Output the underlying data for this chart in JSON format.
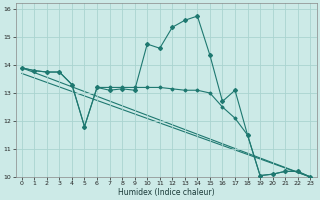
{
  "xlabel": "Humidex (Indice chaleur)",
  "bg_color": "#cceae7",
  "grid_color": "#aad4d0",
  "line_color": "#1e7870",
  "xlim": [
    -0.5,
    23.5
  ],
  "ylim": [
    10,
    16.2
  ],
  "xticks": [
    0,
    1,
    2,
    3,
    4,
    5,
    6,
    7,
    8,
    9,
    10,
    11,
    12,
    13,
    14,
    15,
    16,
    17,
    18,
    19,
    20,
    21,
    22,
    23
  ],
  "yticks": [
    10,
    11,
    12,
    13,
    14,
    15,
    16
  ],
  "line1_x": [
    0,
    1,
    2,
    3,
    4,
    5,
    6,
    7,
    8,
    9,
    10,
    11,
    12,
    13,
    14,
    15,
    16,
    17,
    18,
    19,
    20,
    21,
    22,
    23
  ],
  "line1_y": [
    13.9,
    13.8,
    13.75,
    13.75,
    13.3,
    11.8,
    13.2,
    13.1,
    13.15,
    13.1,
    14.75,
    14.6,
    15.35,
    15.6,
    15.75,
    14.35,
    12.7,
    13.1,
    11.5,
    10.05,
    10.1,
    10.2,
    10.2,
    10.0
  ],
  "line2_x": [
    0,
    1,
    2,
    3,
    4,
    5,
    6,
    7,
    8,
    9,
    10,
    11,
    12,
    13,
    14,
    15,
    16,
    17,
    18,
    19,
    20,
    21,
    22,
    23
  ],
  "line2_y": [
    13.9,
    13.8,
    13.75,
    13.75,
    13.3,
    11.8,
    13.2,
    13.2,
    13.2,
    13.2,
    13.2,
    13.2,
    13.15,
    13.1,
    13.1,
    13.0,
    12.5,
    12.1,
    11.5,
    10.05,
    10.1,
    10.2,
    10.2,
    10.0
  ],
  "line3_y_start": 13.9,
  "line3_y_end": 10.0,
  "line4_y_start": 13.7,
  "line4_y_end": 10.0
}
